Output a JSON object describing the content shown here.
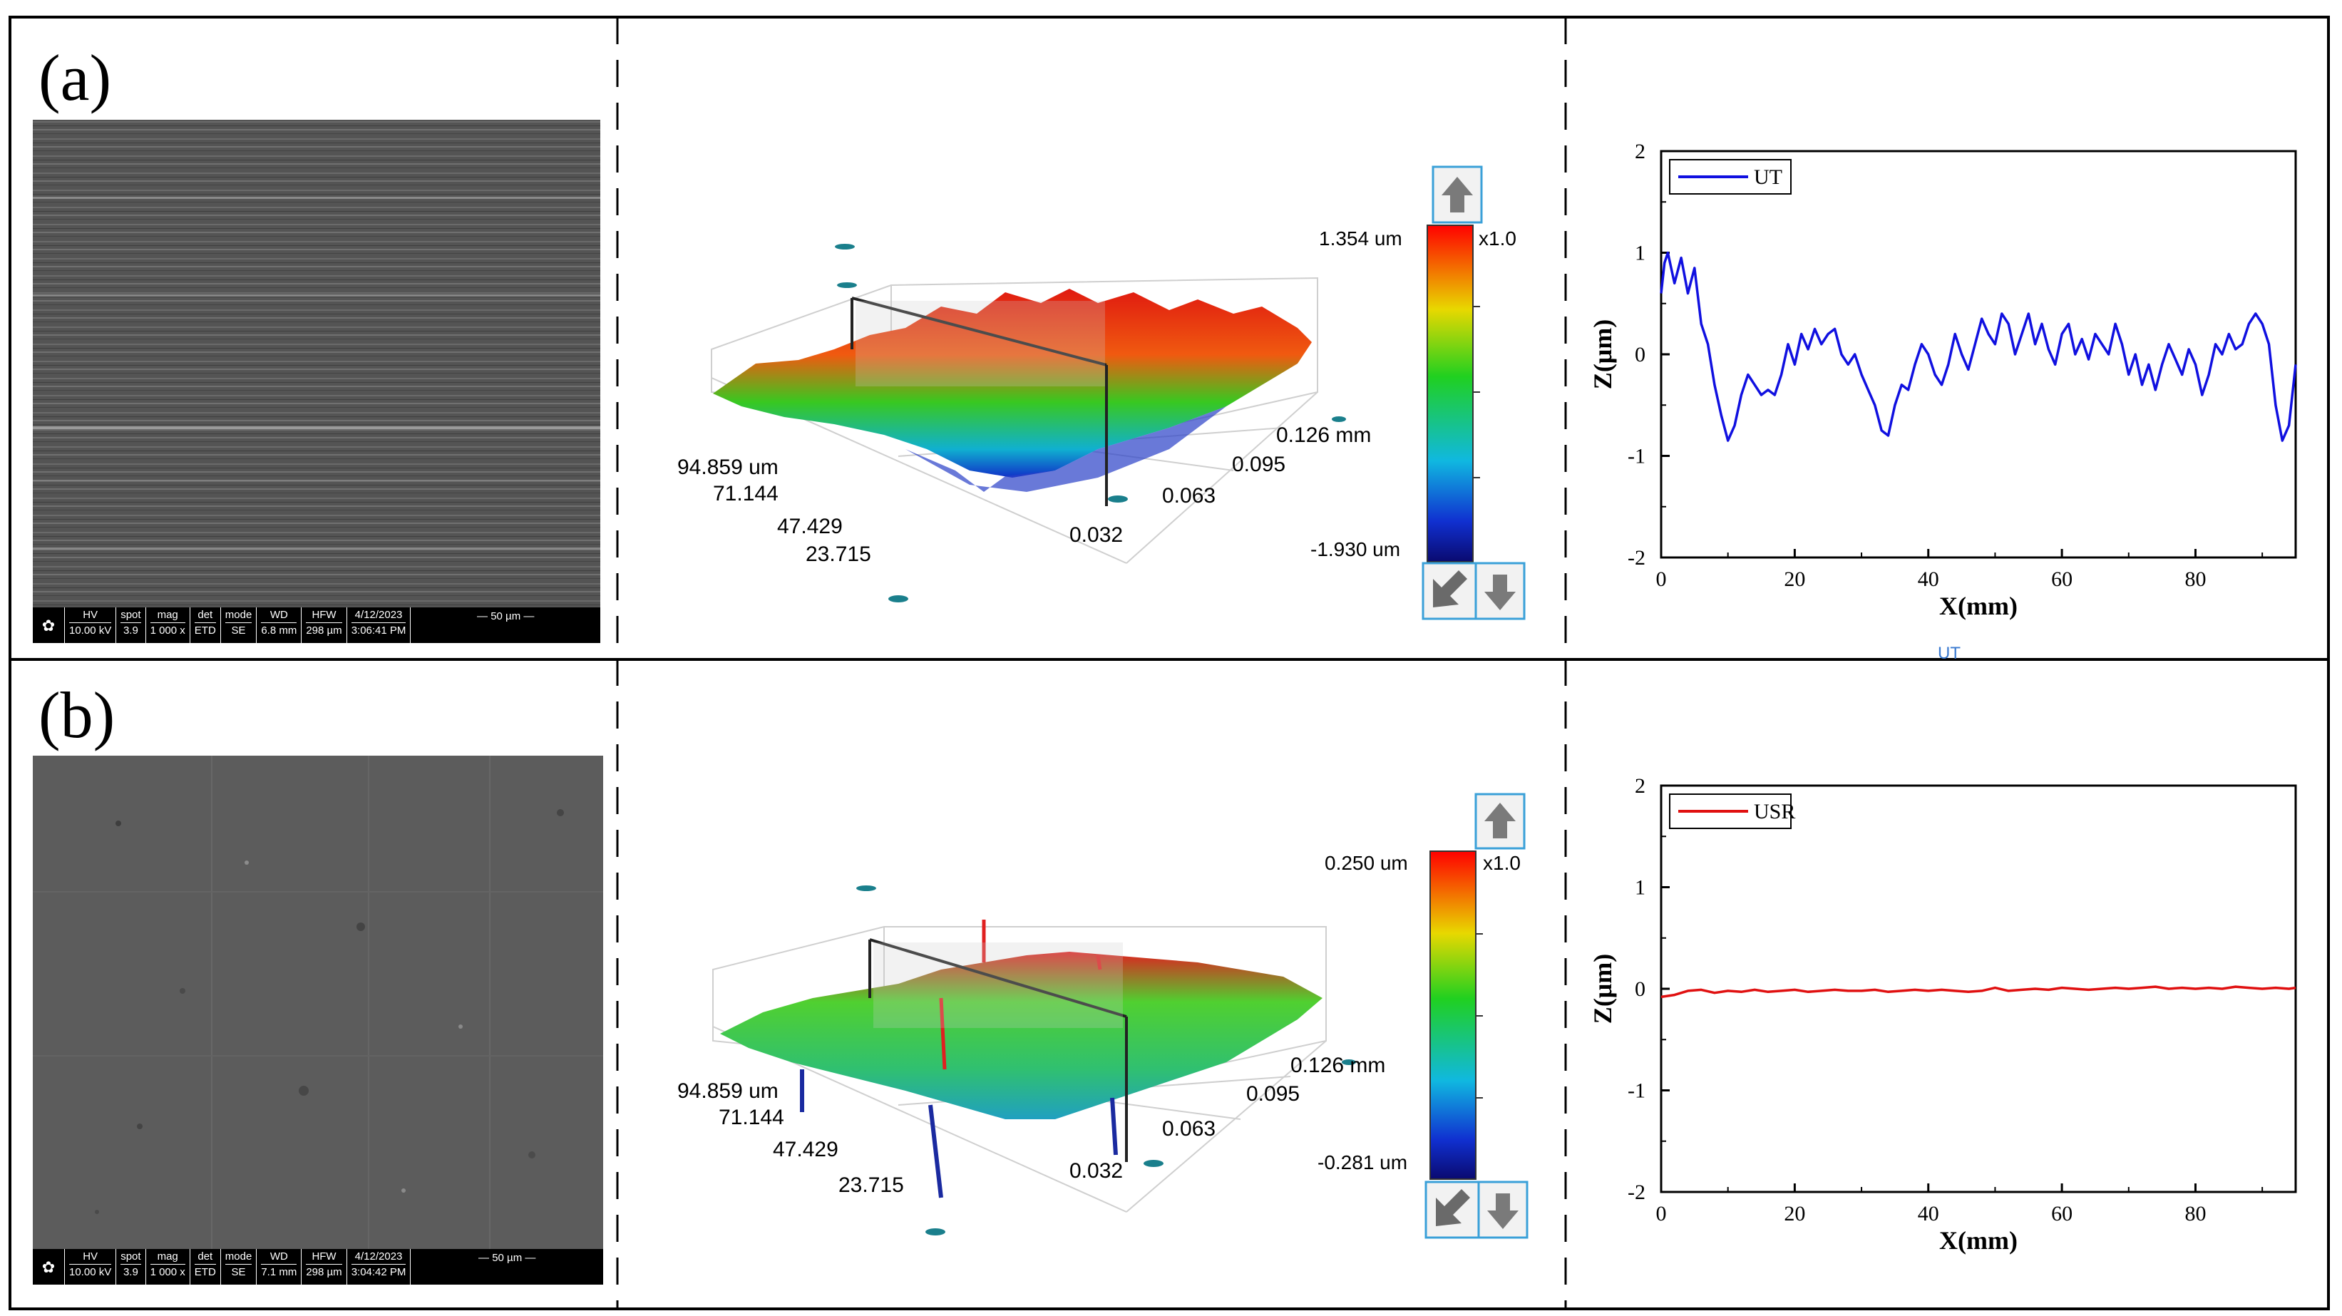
{
  "panels": [
    {
      "label": "(a)",
      "sem": {
        "headers": [
          "HV",
          "spot",
          "mag",
          "det",
          "mode",
          "WD",
          "HFW",
          "4/12/2023"
        ],
        "values": [
          "10.00 kV",
          "3.9",
          "1 000 x",
          "ETD",
          "SE",
          "6.8 mm",
          "298 µm",
          "3:06:41 PM"
        ],
        "scale_bar": "50 µm"
      },
      "topography": {
        "z_max": "1.354 um",
        "z_min": "-1.930 um",
        "zoom": "x1.0",
        "y_ticks": [
          "94.859 um",
          "71.144",
          "47.429",
          "23.715"
        ],
        "x_ticks": [
          "0.126 mm",
          "0.095",
          "0.063",
          "0.032"
        ]
      },
      "faint_label": "UT"
    },
    {
      "label": "(b)",
      "sem": {
        "headers": [
          "HV",
          "spot",
          "mag",
          "det",
          "mode",
          "WD",
          "HFW",
          "4/12/2023"
        ],
        "values": [
          "10.00 kV",
          "3.9",
          "1 000 x",
          "ETD",
          "SE",
          "7.1 mm",
          "298 µm",
          "3:04:42 PM"
        ],
        "scale_bar": "50 µm"
      },
      "topography": {
        "z_max": "0.250 um",
        "z_min": "-0.281 um",
        "zoom": "x1.0",
        "y_ticks": [
          "94.859 um",
          "71.144",
          "47.429",
          "23.715"
        ],
        "x_ticks": [
          "0.126 mm",
          "0.095",
          "0.063",
          "0.032"
        ]
      }
    }
  ],
  "chart_data": [
    {
      "type": "line",
      "title": "",
      "xlabel": "X(mm)",
      "ylabel": "Z(μm)",
      "xlim": [
        0,
        95
      ],
      "ylim": [
        -2,
        2
      ],
      "xticks": [
        "0",
        "20",
        "40",
        "60",
        "80"
      ],
      "yticks": [
        "2",
        "1",
        "0",
        "-1",
        "-2"
      ],
      "legend": "top-left",
      "series": [
        {
          "name": "UT",
          "color": "#1010e0",
          "x": [
            0,
            0.5,
            1,
            2,
            3,
            4,
            5,
            6,
            7,
            8,
            9,
            10,
            11,
            12,
            13,
            14,
            15,
            16,
            17,
            18,
            19,
            20,
            21,
            22,
            23,
            24,
            25,
            26,
            27,
            28,
            29,
            30,
            31,
            32,
            33,
            34,
            35,
            36,
            37,
            38,
            39,
            40,
            41,
            42,
            43,
            44,
            45,
            46,
            47,
            48,
            49,
            50,
            51,
            52,
            53,
            54,
            55,
            56,
            57,
            58,
            59,
            60,
            61,
            62,
            63,
            64,
            65,
            66,
            67,
            68,
            69,
            70,
            71,
            72,
            73,
            74,
            75,
            76,
            77,
            78,
            79,
            80,
            81,
            82,
            83,
            84,
            85,
            86,
            87,
            88,
            89,
            90,
            91,
            92,
            93,
            94,
            95
          ],
          "y": [
            0.6,
            0.9,
            1.0,
            0.7,
            0.95,
            0.6,
            0.85,
            0.3,
            0.1,
            -0.3,
            -0.6,
            -0.85,
            -0.7,
            -0.4,
            -0.2,
            -0.3,
            -0.4,
            -0.35,
            -0.4,
            -0.2,
            0.1,
            -0.1,
            0.2,
            0.05,
            0.25,
            0.1,
            0.2,
            0.25,
            0.0,
            -0.1,
            0.0,
            -0.2,
            -0.35,
            -0.5,
            -0.75,
            -0.8,
            -0.5,
            -0.3,
            -0.35,
            -0.1,
            0.1,
            0.0,
            -0.2,
            -0.3,
            -0.1,
            0.2,
            0.0,
            -0.15,
            0.1,
            0.35,
            0.2,
            0.1,
            0.4,
            0.3,
            0.0,
            0.2,
            0.4,
            0.1,
            0.3,
            0.05,
            -0.1,
            0.2,
            0.3,
            0.0,
            0.15,
            -0.05,
            0.2,
            0.1,
            0.0,
            0.3,
            0.1,
            -0.2,
            0.0,
            -0.3,
            -0.1,
            -0.35,
            -0.1,
            0.1,
            -0.05,
            -0.2,
            0.05,
            -0.1,
            -0.4,
            -0.2,
            0.1,
            0.0,
            0.2,
            0.05,
            0.1,
            0.3,
            0.4,
            0.3,
            0.1,
            -0.5,
            -0.85,
            -0.7,
            -0.1
          ]
        }
      ]
    },
    {
      "type": "line",
      "title": "",
      "xlabel": "X(mm)",
      "ylabel": "Z(μm)",
      "xlim": [
        0,
        95
      ],
      "ylim": [
        -2,
        2
      ],
      "xticks": [
        "0",
        "20",
        "40",
        "60",
        "80"
      ],
      "yticks": [
        "2",
        "1",
        "0",
        "-1",
        "-2"
      ],
      "legend": "top-left",
      "series": [
        {
          "name": "USR",
          "color": "#e01010",
          "x": [
            0,
            2,
            4,
            6,
            8,
            10,
            12,
            14,
            16,
            18,
            20,
            22,
            24,
            26,
            28,
            30,
            32,
            34,
            36,
            38,
            40,
            42,
            44,
            46,
            48,
            50,
            52,
            54,
            56,
            58,
            60,
            62,
            64,
            66,
            68,
            70,
            72,
            74,
            76,
            78,
            80,
            82,
            84,
            86,
            88,
            90,
            92,
            94,
            95
          ],
          "y": [
            -0.08,
            -0.06,
            -0.02,
            -0.01,
            -0.04,
            -0.02,
            -0.03,
            -0.01,
            -0.03,
            -0.02,
            -0.01,
            -0.03,
            -0.02,
            -0.01,
            -0.02,
            -0.02,
            -0.01,
            -0.03,
            -0.02,
            -0.01,
            -0.02,
            -0.01,
            -0.02,
            -0.03,
            -0.02,
            0.01,
            -0.02,
            -0.01,
            0.0,
            -0.01,
            0.01,
            0.0,
            -0.01,
            0.0,
            0.01,
            0.0,
            0.01,
            0.02,
            0.0,
            0.01,
            0.0,
            0.01,
            0.0,
            0.02,
            0.01,
            0.0,
            0.01,
            0.0,
            0.01
          ]
        }
      ]
    }
  ]
}
